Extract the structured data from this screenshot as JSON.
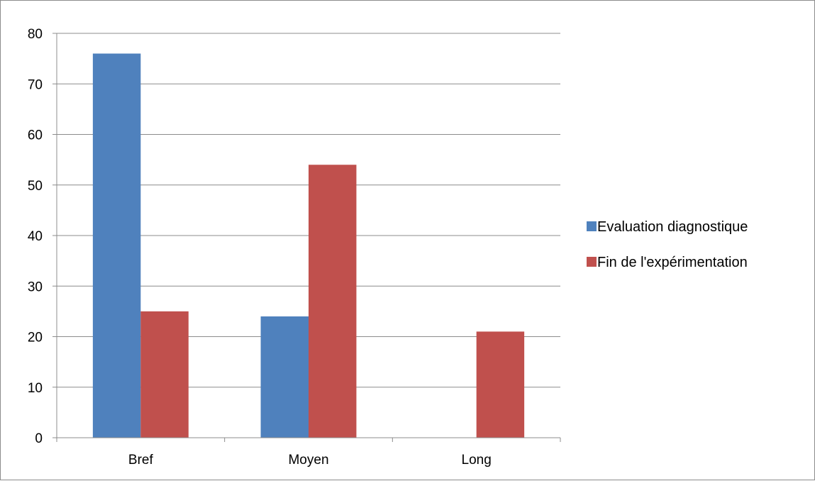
{
  "chart_data": {
    "type": "bar",
    "categories": [
      "Bref",
      "Moyen",
      "Long"
    ],
    "series": [
      {
        "name": "Evaluation diagnostique",
        "values": [
          76,
          24,
          0
        ],
        "color": "#4f81bd"
      },
      {
        "name": "Fin de l'expérimentation",
        "values": [
          25,
          54,
          21
        ],
        "color": "#c0504d"
      }
    ],
    "yticks": [
      "0",
      "10",
      "20",
      "30",
      "40",
      "50",
      "60",
      "70",
      "80"
    ],
    "ylim": [
      0,
      80
    ],
    "title": "",
    "xlabel": "",
    "ylabel": "",
    "grid": true,
    "legend_position": "right"
  }
}
